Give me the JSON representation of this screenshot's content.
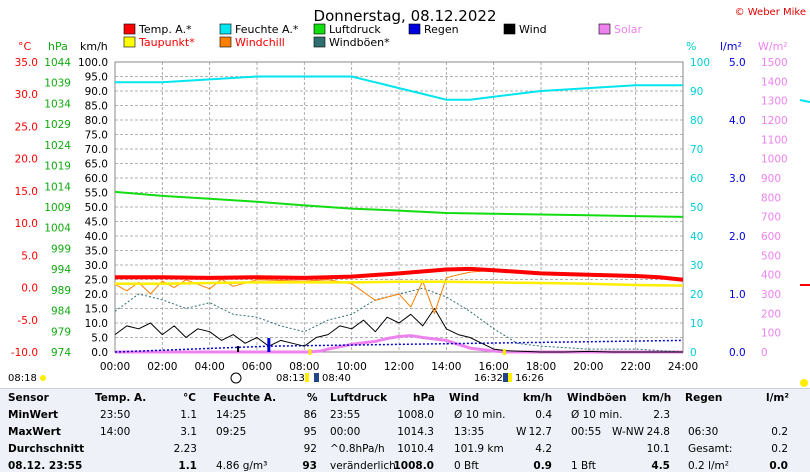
{
  "title": "Donnerstag, 08.12.2022",
  "copyright": "© Weber Mike",
  "colors": {
    "temp": "#ff0000",
    "hum": "#00e5ee",
    "press": "#11dd11",
    "rain": "#0000dd",
    "wind": "#000000",
    "solar": "#ee82ee",
    "dew": "#ffff00",
    "chill": "#ff7f00",
    "gust": "#2f6f6f",
    "grid": "#999999"
  },
  "legend": [
    {
      "label": "Temp. A.*",
      "color": "#ff0000"
    },
    {
      "label": "Feuchte A.*",
      "color": "#00e5ee"
    },
    {
      "label": "Luftdruck",
      "color": "#11dd11"
    },
    {
      "label": "Regen",
      "color": "#0000dd"
    },
    {
      "label": "Wind",
      "color": "#000000"
    },
    {
      "label": "Solar",
      "color": "#ee82ee"
    },
    {
      "label": "Taupunkt*",
      "color": "#ffff00"
    },
    {
      "label": "Windchill",
      "color": "#ff7f00"
    },
    {
      "label": "Windböen*",
      "color": "#2f6f6f"
    }
  ],
  "axis_units": {
    "temp": "°C",
    "press": "hPa",
    "wind": "km/h",
    "hum": "%",
    "rain": "l/m²",
    "solar": "W/m²"
  },
  "axis_ticks": {
    "temp": [
      "35.0",
      "30.0",
      "25.0",
      "20.0",
      "15.0",
      "10.0",
      "5.0",
      "0.0",
      "-5.0",
      "-10.0"
    ],
    "press": [
      "1044",
      "1039",
      "1034",
      "1029",
      "1024",
      "1019",
      "1014",
      "1009",
      "1004",
      "999",
      "994",
      "989",
      "984",
      "979",
      "974"
    ],
    "wind": [
      "100.0",
      "95.0",
      "90.0",
      "85.0",
      "80.0",
      "75.0",
      "70.0",
      "65.0",
      "60.0",
      "55.0",
      "50.0",
      "45.0",
      "40.0",
      "35.0",
      "30.0",
      "25.0",
      "20.0",
      "15.0",
      "10.0",
      "5.0",
      "0.0"
    ],
    "hum": [
      "100",
      "90",
      "80",
      "70",
      "60",
      "50",
      "40",
      "30",
      "20",
      "10",
      "0"
    ],
    "rain": [
      "5.0",
      "4.0",
      "3.0",
      "2.0",
      "1.0",
      "0.0"
    ],
    "solar": [
      "1500",
      "1400",
      "1300",
      "1200",
      "1100",
      "1000",
      "900",
      "800",
      "700",
      "600",
      "500",
      "400",
      "300",
      "200",
      "100",
      "0"
    ],
    "x": [
      "00:00",
      "02:00",
      "04:00",
      "06:00",
      "08:00",
      "10:00",
      "12:00",
      "14:00",
      "16:00",
      "18:00",
      "20:00",
      "22:00",
      "24:00"
    ]
  },
  "sun": {
    "sunrise": "08:13",
    "transit": "08:40",
    "sunset": "16:26",
    "moonset": "16:32",
    "moonrise": "08:18"
  },
  "chart_data": {
    "type": "line",
    "title": "Donnerstag, 08.12.2022",
    "x_unit": "time of day (h)",
    "xlim": [
      0,
      24
    ],
    "series": [
      {
        "name": "Temp. A.*",
        "axis": "°C",
        "ylim": [
          -10,
          35
        ],
        "x": [
          0,
          2,
          4,
          6,
          8,
          10,
          12,
          14,
          15,
          16,
          18,
          20,
          22,
          23,
          24
        ],
        "values": [
          1.6,
          1.6,
          1.5,
          1.6,
          1.5,
          1.7,
          2.2,
          2.8,
          2.9,
          2.7,
          2.2,
          2.0,
          1.8,
          1.6,
          1.2
        ]
      },
      {
        "name": "Feuchte A.*",
        "axis": "%",
        "ylim": [
          0,
          100
        ],
        "x": [
          0,
          2,
          4,
          6,
          8,
          10,
          11,
          12,
          13,
          14,
          15,
          16,
          18,
          20,
          22,
          24
        ],
        "values": [
          93,
          93,
          94,
          95,
          95,
          95,
          93,
          91,
          89,
          87,
          87,
          88,
          90,
          91,
          92,
          92
        ]
      },
      {
        "name": "Luftdruck",
        "axis": "hPa",
        "ylim": [
          974,
          1047
        ],
        "x": [
          0,
          2,
          4,
          6,
          8,
          10,
          12,
          14,
          16,
          18,
          20,
          22,
          24
        ],
        "values": [
          1014.3,
          1013.3,
          1012.6,
          1011.8,
          1010.9,
          1010.1,
          1009.6,
          1009.0,
          1008.8,
          1008.6,
          1008.4,
          1008.2,
          1008.0
        ]
      },
      {
        "name": "Taupunkt*",
        "axis": "°C",
        "ylim": [
          -10,
          35
        ],
        "x": [
          0,
          2,
          4,
          6,
          8,
          10,
          12,
          14,
          16,
          18,
          20,
          22,
          24
        ],
        "values": [
          0.6,
          0.6,
          0.7,
          0.8,
          0.8,
          0.8,
          0.9,
          0.9,
          0.8,
          0.7,
          0.6,
          0.4,
          0.3
        ]
      },
      {
        "name": "Windchill",
        "axis": "°C",
        "ylim": [
          -10,
          35
        ],
        "x": [
          0,
          0.5,
          1,
          1.5,
          2,
          2.5,
          3,
          4,
          4.5,
          5,
          6,
          7,
          8,
          9,
          10,
          11,
          12,
          12.5,
          13,
          13.5,
          14,
          14.5,
          15,
          16,
          18,
          20,
          22,
          24
        ],
        "values": [
          0.5,
          -0.5,
          0.8,
          -1.0,
          1.0,
          0.0,
          1.2,
          -0.2,
          1.3,
          0.2,
          1.2,
          1.1,
          1.0,
          1.2,
          0.6,
          -2.0,
          -1.0,
          -3.0,
          1.0,
          -4.0,
          1.5,
          2.0,
          2.4,
          2.7,
          2.2,
          2.0,
          1.8,
          1.2
        ]
      },
      {
        "name": "Wind",
        "axis": "km/h",
        "ylim": [
          0,
          100
        ],
        "x": [
          0,
          0.5,
          1,
          1.5,
          2,
          2.5,
          3,
          3.5,
          4,
          4.5,
          5,
          5.5,
          6,
          6.5,
          7,
          7.5,
          8,
          8.5,
          9,
          9.5,
          10,
          10.5,
          11,
          11.5,
          12,
          12.5,
          13,
          13.5,
          14,
          14.5,
          15,
          15.5,
          16,
          16.5,
          17,
          18,
          19,
          20,
          21,
          22,
          23,
          24
        ],
        "values": [
          6,
          9,
          8,
          10,
          6,
          9,
          5,
          8,
          7,
          4,
          6,
          3,
          5,
          2,
          4,
          3,
          2,
          5,
          6,
          9,
          8,
          11,
          7,
          12,
          10,
          13,
          9,
          15,
          8,
          6,
          5,
          3,
          1,
          0.5,
          0.3,
          0,
          0,
          0.2,
          0,
          0,
          0,
          0
        ]
      },
      {
        "name": "Windböen*",
        "axis": "km/h",
        "ylim": [
          0,
          100
        ],
        "x": [
          0,
          1,
          2,
          3,
          4,
          5,
          6,
          7,
          8,
          9,
          10,
          11,
          12,
          13,
          14,
          15,
          16,
          17,
          18,
          20,
          22,
          24
        ],
        "values": [
          14,
          20,
          18,
          15,
          17,
          13,
          12,
          9,
          7,
          11,
          13,
          18,
          20,
          22,
          19,
          14,
          8,
          3,
          2,
          1,
          1,
          0
        ]
      },
      {
        "name": "Solar",
        "axis": "W/m²",
        "ylim": [
          0,
          1500
        ],
        "x": [
          0,
          8.2,
          8.7,
          9,
          10,
          11,
          11.5,
          12,
          12.5,
          13,
          14,
          14.5,
          15,
          16,
          16.5,
          24
        ],
        "values": [
          0,
          0,
          5,
          15,
          40,
          55,
          70,
          80,
          85,
          75,
          60,
          40,
          20,
          5,
          0,
          0
        ]
      },
      {
        "name": "Regen",
        "axis": "l/m²",
        "ylim": [
          0,
          5
        ],
        "x": [
          0,
          6.5,
          24
        ],
        "values": [
          0,
          0.1,
          0.2
        ]
      }
    ]
  },
  "table": {
    "headers": [
      "Sensor",
      "Temp. A.",
      "°C",
      "Feuchte A.",
      "%",
      "Luftdruck",
      "hPa",
      "Wind",
      "km/h",
      "Windböen",
      "km/h",
      "Regen",
      "l/m²"
    ],
    "rows": [
      {
        "label": "MinWert",
        "temp_time": "23:50",
        "temp": "1.1",
        "hum_time": "14:25",
        "hum": "86",
        "press_time": "23:55",
        "press": "1008.0",
        "wind_label": "Ø 10 min.",
        "wind": "0.4",
        "gust_label": "Ø 10 min.",
        "gust": "2.3",
        "rain_label": "",
        "rain": ""
      },
      {
        "label": "MaxWert",
        "temp_time": "14:00",
        "temp": "3.1",
        "hum_time": "09:25",
        "hum": "95",
        "press_time": "00:00",
        "press": "1014.3",
        "wind_label": "13:35",
        "wind_dir": "W",
        "wind": "12.7",
        "gust_label": "00:55",
        "gust_dir": "W-NW",
        "gust": "24.8",
        "rain_label": "06:30",
        "rain": "0.2"
      },
      {
        "label": "Durchschnitt",
        "temp_time": "",
        "temp": "2.23",
        "hum_time": "",
        "hum": "92",
        "press_time": "^0.8hPa/h",
        "press": "1010.4",
        "wind_label": "101.9 km",
        "wind": "4.2",
        "gust_label": "",
        "gust": "10.1",
        "rain_label": "Gesamt:",
        "rain": "0.2"
      },
      {
        "label": "08.12. 23:55",
        "temp_time": "",
        "temp": "1.1",
        "hum_time": "4.86 g/m³",
        "hum": "93",
        "press_time": "veränderlich",
        "press": "1008.0",
        "wind_label": "0 Bft",
        "wind": "0.9",
        "gust_label": "1 Bft",
        "gust": "4.5",
        "rain_label": "0.2 l/m²",
        "rain": "0.0"
      }
    ]
  }
}
